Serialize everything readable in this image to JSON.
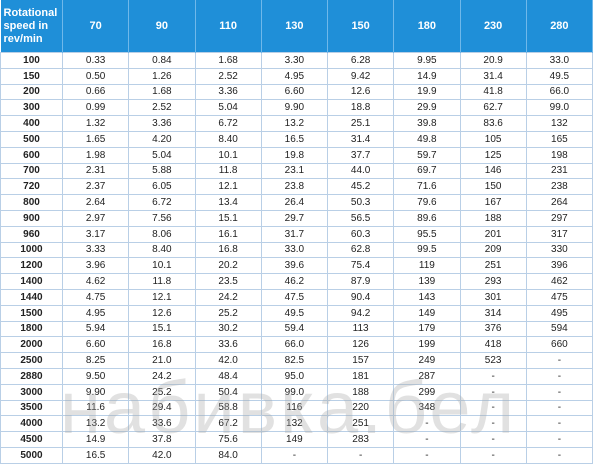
{
  "table": {
    "header": [
      "Rotational speed in rev/min",
      "70",
      "90",
      "110",
      "130",
      "150",
      "180",
      "230",
      "280"
    ],
    "rows": [
      [
        "100",
        "0.33",
        "0.84",
        "1.68",
        "3.30",
        "6.28",
        "9.95",
        "20.9",
        "33.0"
      ],
      [
        "150",
        "0.50",
        "1.26",
        "2.52",
        "4.95",
        "9.42",
        "14.9",
        "31.4",
        "49.5"
      ],
      [
        "200",
        "0.66",
        "1.68",
        "3.36",
        "6.60",
        "12.6",
        "19.9",
        "41.8",
        "66.0"
      ],
      [
        "300",
        "0.99",
        "2.52",
        "5.04",
        "9.90",
        "18.8",
        "29.9",
        "62.7",
        "99.0"
      ],
      [
        "400",
        "1.32",
        "3.36",
        "6.72",
        "13.2",
        "25.1",
        "39.8",
        "83.6",
        "132"
      ],
      [
        "500",
        "1.65",
        "4.20",
        "8.40",
        "16.5",
        "31.4",
        "49.8",
        "105",
        "165"
      ],
      [
        "600",
        "1.98",
        "5.04",
        "10.1",
        "19.8",
        "37.7",
        "59.7",
        "125",
        "198"
      ],
      [
        "700",
        "2.31",
        "5.88",
        "11.8",
        "23.1",
        "44.0",
        "69.7",
        "146",
        "231"
      ],
      [
        "720",
        "2.37",
        "6.05",
        "12.1",
        "23.8",
        "45.2",
        "71.6",
        "150",
        "238"
      ],
      [
        "800",
        "2.64",
        "6.72",
        "13.4",
        "26.4",
        "50.3",
        "79.6",
        "167",
        "264"
      ],
      [
        "900",
        "2.97",
        "7.56",
        "15.1",
        "29.7",
        "56.5",
        "89.6",
        "188",
        "297"
      ],
      [
        "960",
        "3.17",
        "8.06",
        "16.1",
        "31.7",
        "60.3",
        "95.5",
        "201",
        "317"
      ],
      [
        "1000",
        "3.33",
        "8.40",
        "16.8",
        "33.0",
        "62.8",
        "99.5",
        "209",
        "330"
      ],
      [
        "1200",
        "3.96",
        "10.1",
        "20.2",
        "39.6",
        "75.4",
        "119",
        "251",
        "396"
      ],
      [
        "1400",
        "4.62",
        "11.8",
        "23.5",
        "46.2",
        "87.9",
        "139",
        "293",
        "462"
      ],
      [
        "1440",
        "4.75",
        "12.1",
        "24.2",
        "47.5",
        "90.4",
        "143",
        "301",
        "475"
      ],
      [
        "1500",
        "4.95",
        "12.6",
        "25.2",
        "49.5",
        "94.2",
        "149",
        "314",
        "495"
      ],
      [
        "1800",
        "5.94",
        "15.1",
        "30.2",
        "59.4",
        "113",
        "179",
        "376",
        "594"
      ],
      [
        "2000",
        "6.60",
        "16.8",
        "33.6",
        "66.0",
        "126",
        "199",
        "418",
        "660"
      ],
      [
        "2500",
        "8.25",
        "21.0",
        "42.0",
        "82.5",
        "157",
        "249",
        "523",
        "-"
      ],
      [
        "2880",
        "9.50",
        "24.2",
        "48.4",
        "95.0",
        "181",
        "287",
        "-",
        "-"
      ],
      [
        "3000",
        "9.90",
        "25.2",
        "50.4",
        "99.0",
        "188",
        "299",
        "-",
        "-"
      ],
      [
        "3500",
        "11.6",
        "29.4",
        "58.8",
        "116",
        "220",
        "348",
        "-",
        "-"
      ],
      [
        "4000",
        "13.2",
        "33.6",
        "67.2",
        "132",
        "251",
        "-",
        "-",
        "-"
      ],
      [
        "4500",
        "14.9",
        "37.8",
        "75.6",
        "149",
        "283",
        "-",
        "-",
        "-"
      ],
      [
        "5000",
        "16.5",
        "42.0",
        "84.0",
        "-",
        "-",
        "-",
        "-",
        "-"
      ]
    ]
  },
  "watermark": "набивка.бел"
}
